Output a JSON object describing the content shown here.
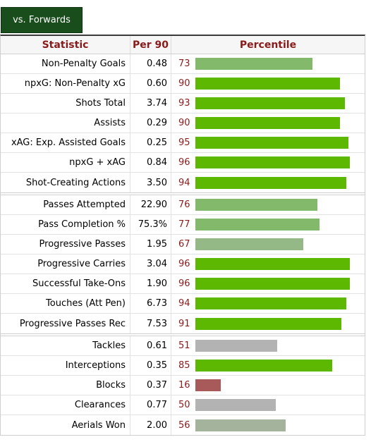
{
  "tab_label": "vs. Forwards",
  "headers": {
    "statistic": "Statistic",
    "per90": "Per 90",
    "percentile": "Percentile"
  },
  "colors": {
    "strong": "#5cb800",
    "good": "#82b96b",
    "medium": "#94b886",
    "neutral": "#b3b3b3",
    "neutral_green": "#a3b39c",
    "poor": "#a85959"
  },
  "groups": [
    [
      {
        "stat": "Non-Penalty Goals",
        "per90": "0.48",
        "pct": "73",
        "color": "good"
      },
      {
        "stat": "npxG: Non-Penalty xG",
        "per90": "0.60",
        "pct": "90",
        "color": "strong"
      },
      {
        "stat": "Shots Total",
        "per90": "3.74",
        "pct": "93",
        "color": "strong"
      },
      {
        "stat": "Assists",
        "per90": "0.29",
        "pct": "90",
        "color": "strong"
      },
      {
        "stat": "xAG: Exp. Assisted Goals",
        "per90": "0.25",
        "pct": "95",
        "color": "strong"
      },
      {
        "stat": "npxG + xAG",
        "per90": "0.84",
        "pct": "96",
        "color": "strong"
      },
      {
        "stat": "Shot-Creating Actions",
        "per90": "3.50",
        "pct": "94",
        "color": "strong"
      }
    ],
    [
      {
        "stat": "Passes Attempted",
        "per90": "22.90",
        "pct": "76",
        "color": "good"
      },
      {
        "stat": "Pass Completion %",
        "per90": "75.3%",
        "pct": "77",
        "color": "good"
      },
      {
        "stat": "Progressive Passes",
        "per90": "1.95",
        "pct": "67",
        "color": "medium"
      },
      {
        "stat": "Progressive Carries",
        "per90": "3.04",
        "pct": "96",
        "color": "strong"
      },
      {
        "stat": "Successful Take-Ons",
        "per90": "1.90",
        "pct": "96",
        "color": "strong"
      },
      {
        "stat": "Touches (Att Pen)",
        "per90": "6.73",
        "pct": "94",
        "color": "strong"
      },
      {
        "stat": "Progressive Passes Rec",
        "per90": "7.53",
        "pct": "91",
        "color": "strong"
      }
    ],
    [
      {
        "stat": "Tackles",
        "per90": "0.61",
        "pct": "51",
        "color": "neutral"
      },
      {
        "stat": "Interceptions",
        "per90": "0.35",
        "pct": "85",
        "color": "strong"
      },
      {
        "stat": "Blocks",
        "per90": "0.37",
        "pct": "16",
        "color": "poor"
      },
      {
        "stat": "Clearances",
        "per90": "0.77",
        "pct": "50",
        "color": "neutral"
      },
      {
        "stat": "Aerials Won",
        "per90": "2.00",
        "pct": "56",
        "color": "neutral_green"
      }
    ]
  ]
}
